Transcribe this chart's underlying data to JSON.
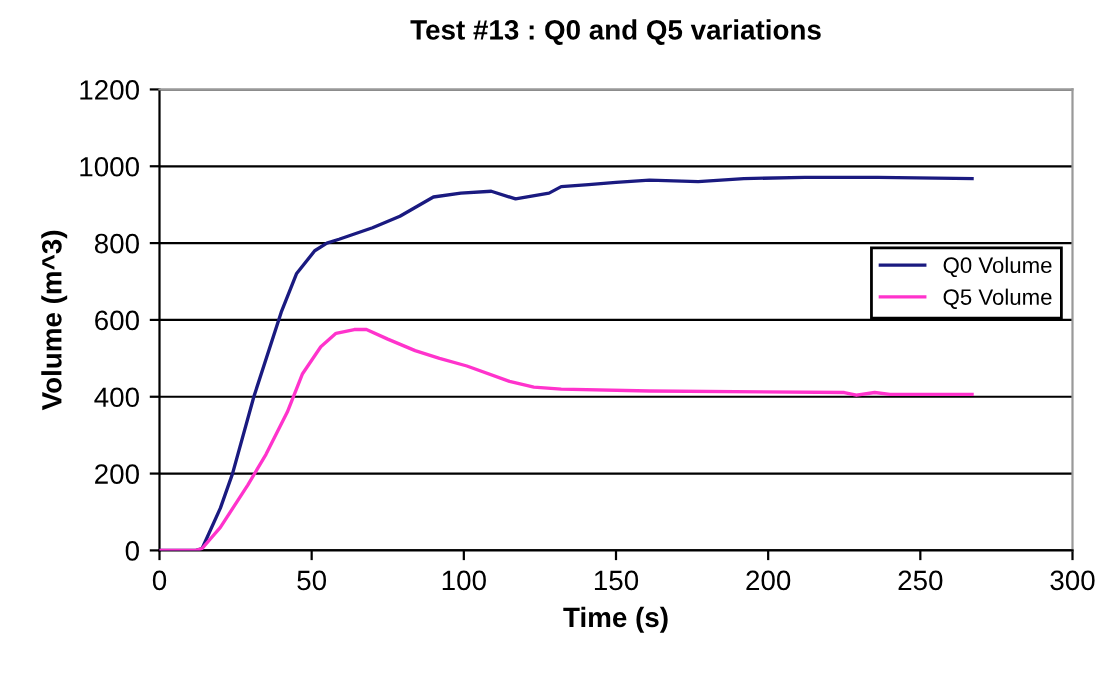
{
  "chart_data": {
    "type": "line",
    "title": "Test #13 : Q0 and Q5 variations",
    "xlabel": "Time (s)",
    "ylabel": "Volume (m^3)",
    "xlim": [
      0,
      300
    ],
    "xticks": [
      0,
      50,
      100,
      150,
      200,
      250,
      300
    ],
    "ylim": [
      0,
      1200
    ],
    "yticks": [
      0,
      200,
      400,
      600,
      800,
      1000,
      1200
    ],
    "grid": "y",
    "legend": "right",
    "series": [
      {
        "name": "Q0 Volume",
        "color": "#1a1a80",
        "x": [
          0,
          12,
          14,
          20,
          24,
          31,
          40,
          45,
          51,
          55,
          59,
          70,
          79,
          90,
          99,
          109,
          117,
          128,
          132,
          141,
          150,
          161,
          177,
          192,
          212,
          236,
          267
        ],
        "values": [
          0,
          0,
          5,
          110,
          200,
          400,
          620,
          720,
          780,
          800,
          810,
          840,
          870,
          920,
          930,
          935,
          915,
          930,
          947,
          952,
          958,
          964,
          960,
          968,
          971,
          971,
          968
        ]
      },
      {
        "name": "Q5 Volume",
        "color": "#ff33cc",
        "x": [
          0,
          12,
          14,
          20,
          29,
          35,
          42,
          47,
          53,
          58,
          64,
          68,
          75,
          84,
          92,
          101,
          115,
          123,
          132,
          161,
          225,
          229,
          235,
          240,
          267
        ],
        "values": [
          0,
          0,
          5,
          60,
          170,
          250,
          360,
          460,
          530,
          565,
          575,
          575,
          550,
          520,
          500,
          480,
          440,
          425,
          420,
          415,
          411,
          404,
          411,
          406,
          406
        ]
      }
    ]
  }
}
